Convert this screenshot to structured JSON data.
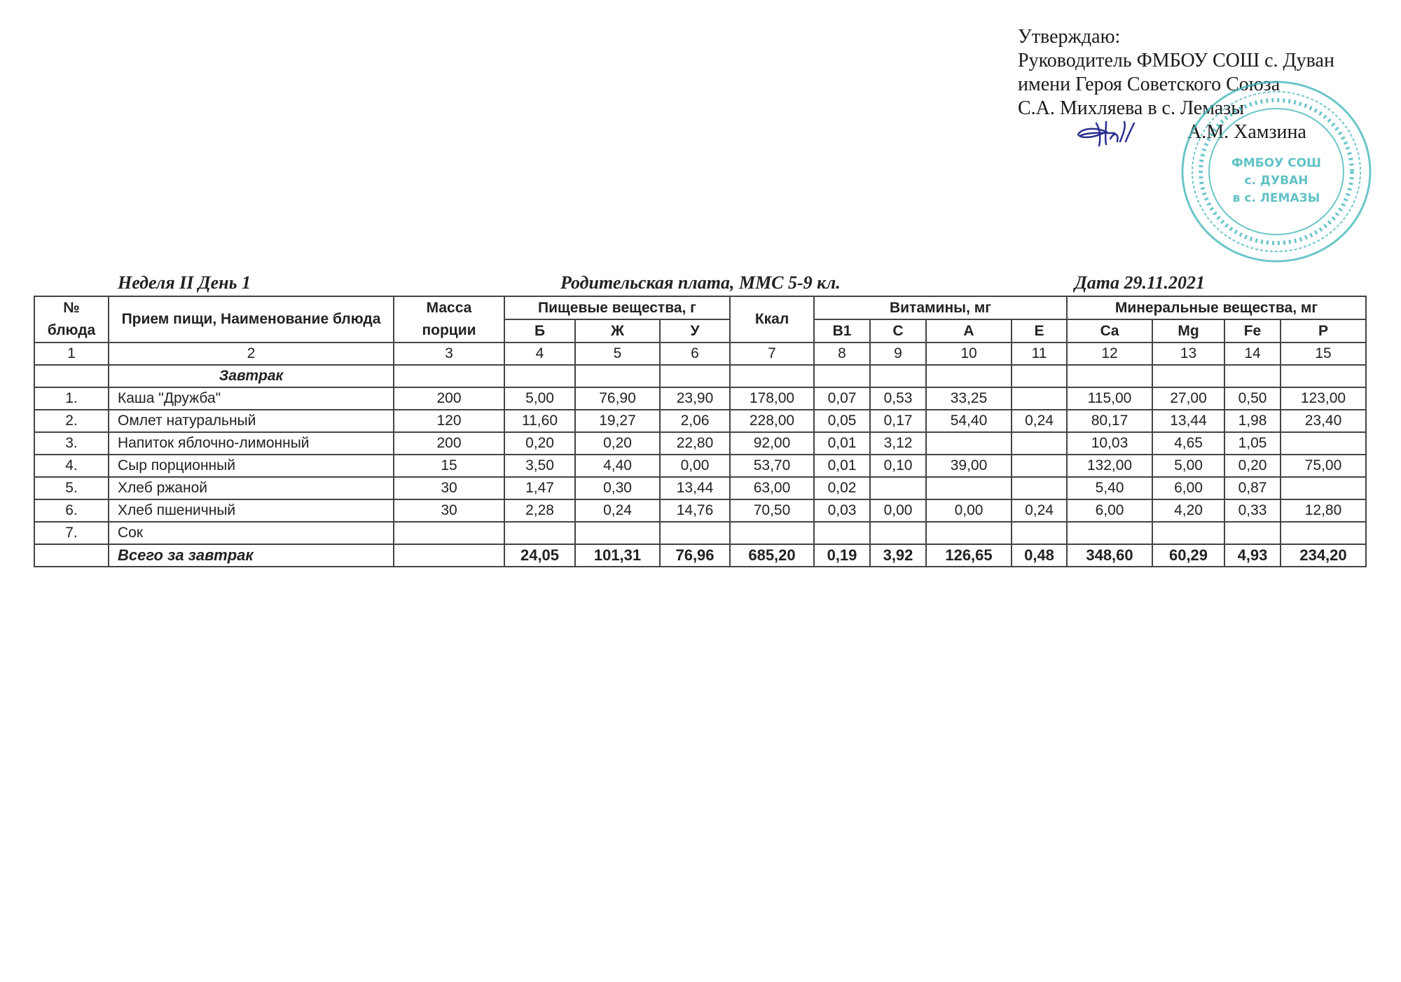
{
  "approval": {
    "lines": [
      "Утверждаю:",
      "Руководитель ФМБОУ СОШ с. Дуван",
      "имени Героя Советского Союза",
      "С.А. Михляева в с. Лемазы"
    ],
    "signer": "А.М. Хамзина",
    "stamp_text": [
      "ФМБОУ СОШ",
      "с. Дуван",
      "в с. Лемазы"
    ],
    "stamp_color": "#3bb3b8",
    "signature_color": "#2a2f8f"
  },
  "captions": {
    "week_day": "Неделя II  День 1",
    "payment": "Родительская плата, ММС  5-9 кл.",
    "date": "Дата  29.11.2021"
  },
  "table": {
    "headers": {
      "num": "№ блюда",
      "name": "Прием пищи, Наименование блюда",
      "mass": "Масса порции",
      "nutrients": "Пищевые вещества, г",
      "kcal": "Ккал",
      "vitamins": "Витамины, мг",
      "minerals": "Минеральные вещества, мг",
      "sub": [
        "Б",
        "Ж",
        "У",
        "B1",
        "C",
        "A",
        "E",
        "Ca",
        "Mg",
        "Fe",
        "P"
      ]
    },
    "column_numbers": [
      "1",
      "2",
      "3",
      "4",
      "5",
      "6",
      "7",
      "8",
      "9",
      "10",
      "11",
      "12",
      "13",
      "14",
      "15"
    ],
    "section": "Завтрак",
    "rows": [
      [
        "1.",
        "Каша \"Дружба\"",
        "200",
        "5,00",
        "76,90",
        "23,90",
        "178,00",
        "0,07",
        "0,53",
        "33,25",
        "",
        "115,00",
        "27,00",
        "0,50",
        "123,00"
      ],
      [
        "2.",
        "Омлет натуральный",
        "120",
        "11,60",
        "19,27",
        "2,06",
        "228,00",
        "0,05",
        "0,17",
        "54,40",
        "0,24",
        "80,17",
        "13,44",
        "1,98",
        "23,40"
      ],
      [
        "3.",
        "Напиток яблочно-лимонный",
        "200",
        "0,20",
        "0,20",
        "22,80",
        "92,00",
        "0,01",
        "3,12",
        "",
        "",
        "10,03",
        "4,65",
        "1,05",
        ""
      ],
      [
        "4.",
        "Сыр порционный",
        "15",
        "3,50",
        "4,40",
        "0,00",
        "53,70",
        "0,01",
        "0,10",
        "39,00",
        "",
        "132,00",
        "5,00",
        "0,20",
        "75,00"
      ],
      [
        "5.",
        "Хлеб ржаной",
        "30",
        "1,47",
        "0,30",
        "13,44",
        "63,00",
        "0,02",
        "",
        "",
        "",
        "5,40",
        "6,00",
        "0,87",
        ""
      ],
      [
        "6.",
        "Хлеб пшеничный",
        "30",
        "2,28",
        "0,24",
        "14,76",
        "70,50",
        "0,03",
        "0,00",
        "0,00",
        "0,24",
        "6,00",
        "4,20",
        "0,33",
        "12,80"
      ],
      [
        "7.",
        "Сок",
        "",
        "",
        "",
        "",
        "",
        "",
        "",
        "",
        "",
        "",
        "",
        "",
        ""
      ]
    ],
    "total": [
      "",
      "Всего за завтрак",
      "",
      "24,05",
      "101,31",
      "76,96",
      "685,20",
      "0,19",
      "3,92",
      "126,65",
      "0,48",
      "348,60",
      "60,29",
      "4,93",
      "234,20"
    ]
  }
}
